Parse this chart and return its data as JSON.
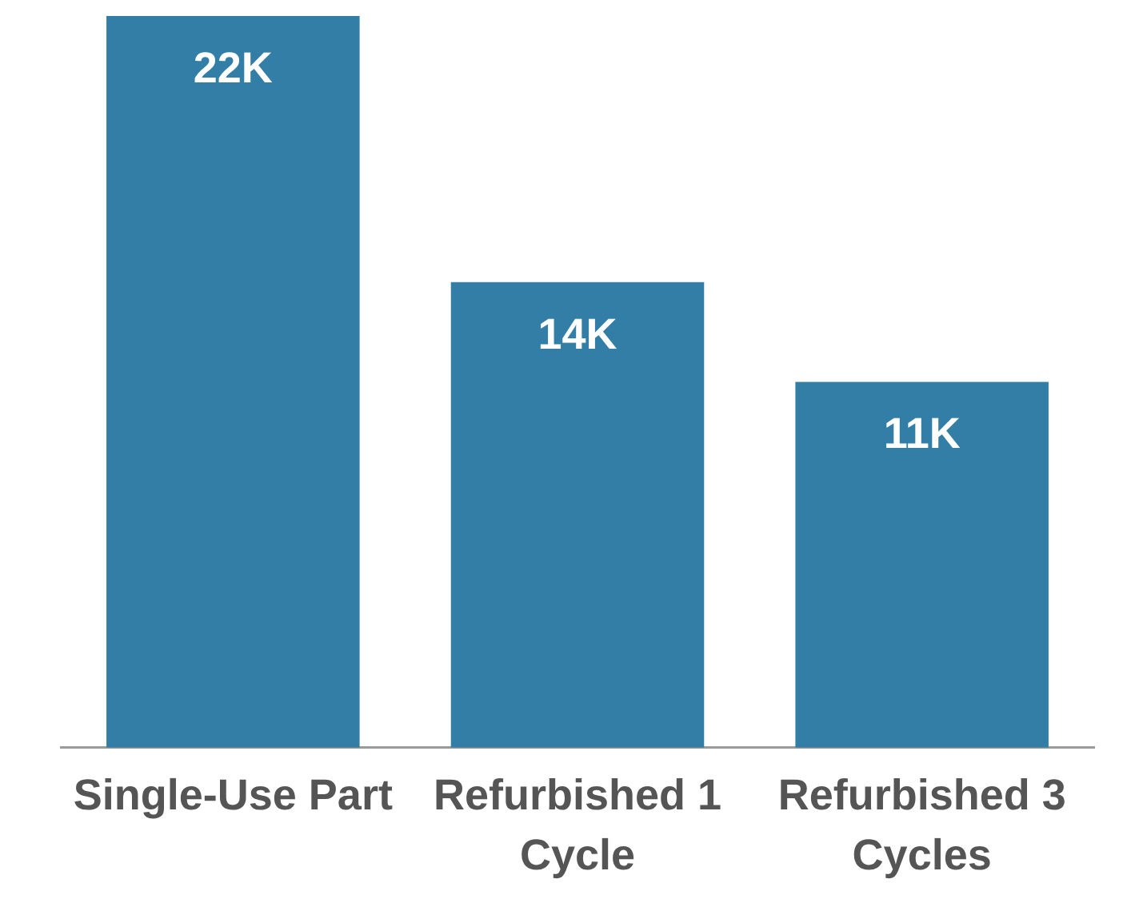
{
  "chart_data": {
    "type": "bar",
    "categories": [
      "Single-Use Part",
      "Refurbished 1 Cycle",
      "Refurbished 3 Cycles"
    ],
    "values": [
      22000,
      14000,
      11000
    ],
    "value_labels": [
      "22K",
      "14K",
      "11K"
    ],
    "color": "#337ea6",
    "grid": false,
    "legend": false,
    "tick_labels": "x"
  }
}
